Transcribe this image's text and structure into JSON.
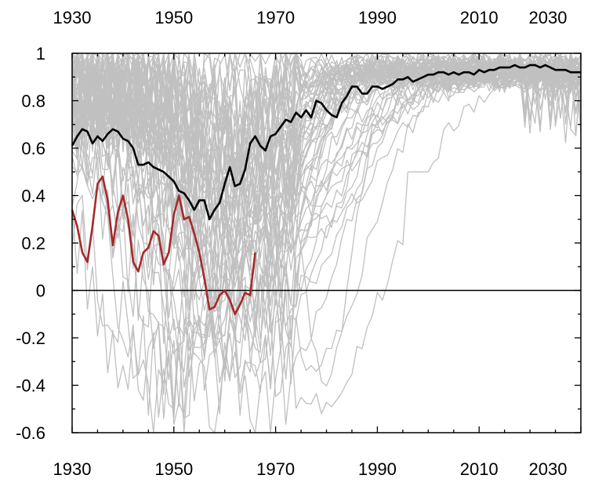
{
  "chart_data": {
    "type": "line",
    "title": "",
    "xlabel": "",
    "ylabel": "",
    "xlim": [
      1930,
      2030
    ],
    "ylim": [
      -0.6,
      1.0
    ],
    "x_ticks": [
      1930,
      1950,
      1970,
      1990,
      2010,
      2030
    ],
    "x_tick_labels": [
      "1930",
      "1950",
      "1970",
      "1990",
      "2010",
      "2030"
    ],
    "y_ticks": [
      -0.6,
      -0.4,
      -0.2,
      0,
      0.2,
      0.4,
      0.6,
      0.8,
      1
    ],
    "y_tick_labels": [
      "-0.6",
      "-0.4",
      "-0.2",
      "0",
      "0.2",
      "0.4",
      "0.6",
      "0.8",
      "1"
    ],
    "x_axis_labels_top_and_bottom": true,
    "zero_line": true,
    "grid": false,
    "legend": "none",
    "colors": {
      "ensemble": "#c0c0c0",
      "mean": "#000000",
      "observed": "#a52a2a",
      "zero_line": "#000000"
    },
    "ensemble": {
      "member_count": 60,
      "early_low_range": [
        -0.6,
        0.95
      ],
      "late_range": [
        0.6,
        1.0
      ],
      "recovery_year": 1975
    },
    "series": [
      {
        "role": "ensemble-mean",
        "x": [
          1930,
          1931,
          1932,
          1933,
          1934,
          1935,
          1936,
          1937,
          1938,
          1939,
          1940,
          1941,
          1942,
          1943,
          1944,
          1945,
          1946,
          1947,
          1948,
          1949,
          1950,
          1951,
          1952,
          1953,
          1954,
          1955,
          1956,
          1957,
          1958,
          1959,
          1960,
          1961,
          1962,
          1963,
          1964,
          1965,
          1966,
          1967,
          1968,
          1969,
          1970,
          1971,
          1972,
          1973,
          1974,
          1975,
          1976,
          1977,
          1978,
          1979,
          1980,
          1981,
          1982,
          1983,
          1984,
          1985,
          1986,
          1987,
          1988,
          1989,
          1990,
          1991,
          1992,
          1993,
          1994,
          1995,
          1996,
          1997,
          1998,
          1999,
          2000,
          2001,
          2002,
          2003,
          2004,
          2005,
          2006,
          2007,
          2008,
          2009,
          2010,
          2011,
          2012,
          2013,
          2014,
          2015,
          2016,
          2017,
          2018,
          2019,
          2020,
          2021,
          2022,
          2023,
          2024,
          2025,
          2026,
          2027,
          2028,
          2029,
          2030
        ],
        "y": [
          0.61,
          0.65,
          0.68,
          0.67,
          0.62,
          0.65,
          0.63,
          0.66,
          0.68,
          0.67,
          0.64,
          0.63,
          0.6,
          0.53,
          0.53,
          0.54,
          0.52,
          0.51,
          0.5,
          0.48,
          0.46,
          0.42,
          0.41,
          0.38,
          0.34,
          0.38,
          0.38,
          0.3,
          0.34,
          0.37,
          0.45,
          0.52,
          0.44,
          0.45,
          0.51,
          0.62,
          0.65,
          0.61,
          0.59,
          0.65,
          0.66,
          0.69,
          0.72,
          0.71,
          0.75,
          0.73,
          0.76,
          0.73,
          0.8,
          0.79,
          0.76,
          0.74,
          0.73,
          0.79,
          0.82,
          0.86,
          0.86,
          0.83,
          0.83,
          0.86,
          0.86,
          0.85,
          0.86,
          0.87,
          0.89,
          0.89,
          0.9,
          0.88,
          0.89,
          0.9,
          0.91,
          0.91,
          0.92,
          0.92,
          0.91,
          0.92,
          0.91,
          0.92,
          0.92,
          0.91,
          0.93,
          0.92,
          0.93,
          0.93,
          0.94,
          0.94,
          0.94,
          0.95,
          0.94,
          0.94,
          0.95,
          0.95,
          0.94,
          0.95,
          0.94,
          0.93,
          0.93,
          0.93,
          0.92,
          0.92,
          0.92
        ]
      },
      {
        "role": "observed",
        "x": [
          1930,
          1931,
          1932,
          1933,
          1934,
          1935,
          1936,
          1937,
          1938,
          1939,
          1940,
          1941,
          1942,
          1943,
          1944,
          1945,
          1946,
          1947,
          1948,
          1949,
          1950,
          1951,
          1952,
          1953,
          1954,
          1955,
          1956,
          1957,
          1958,
          1959,
          1960,
          1961,
          1962,
          1963,
          1964,
          1965,
          1966
        ],
        "y": [
          0.34,
          0.27,
          0.16,
          0.12,
          0.27,
          0.45,
          0.48,
          0.38,
          0.19,
          0.33,
          0.4,
          0.3,
          0.12,
          0.08,
          0.16,
          0.18,
          0.25,
          0.23,
          0.11,
          0.16,
          0.32,
          0.4,
          0.3,
          0.31,
          0.24,
          0.16,
          0.05,
          -0.08,
          -0.07,
          -0.02,
          0.0,
          -0.04,
          -0.1,
          -0.06,
          -0.01,
          -0.02,
          0.16
        ]
      }
    ]
  }
}
